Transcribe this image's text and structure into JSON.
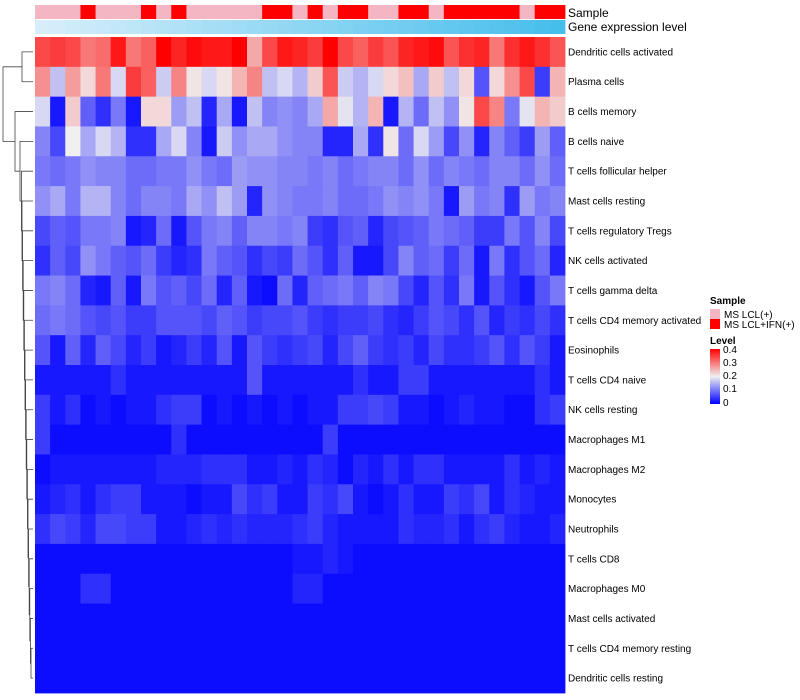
{
  "chart_data": {
    "type": "heatmap",
    "title": "",
    "rows": [
      "Dendritic cells activated",
      "Plasma cells",
      "B cells memory",
      "B cells naive",
      "T cells follicular helper",
      "Mast cells resting",
      "T cells regulatory  Tregs",
      "NK cells activated",
      "T cells gamma delta",
      "T cells CD4 memory activated",
      "Eosinophils",
      "T cells CD4 naive",
      "NK cells resting",
      "Macrophages M1",
      "Macrophages M2",
      "Monocytes",
      "Neutrophils",
      "T cells CD8",
      "Macrophages M0",
      "Mast cells activated",
      "T cells CD4 memory resting",
      "Dendritic cells resting"
    ],
    "values": [
      [
        0.34,
        0.35,
        0.34,
        0.3,
        0.31,
        0.38,
        0.3,
        0.32,
        0.4,
        0.37,
        0.39,
        0.38,
        0.38,
        0.4,
        0.26,
        0.34,
        0.38,
        0.37,
        0.35,
        0.4,
        0.34,
        0.32,
        0.35,
        0.33,
        0.37,
        0.38,
        0.39,
        0.33,
        0.36,
        0.37,
        0.3,
        0.36,
        0.38,
        0.36,
        0.33
      ],
      [
        0.28,
        0.16,
        0.27,
        0.22,
        0.3,
        0.18,
        0.35,
        0.32,
        0.17,
        0.29,
        0.21,
        0.18,
        0.21,
        0.25,
        0.29,
        0.16,
        0.18,
        0.15,
        0.23,
        0.33,
        0.17,
        0.15,
        0.18,
        0.22,
        0.24,
        0.14,
        0.23,
        0.16,
        0.22,
        0.07,
        0.22,
        0.28,
        0.34,
        0.05,
        0.25
      ],
      [
        0.18,
        0.02,
        0.23,
        0.08,
        0.04,
        0.1,
        0.02,
        0.22,
        0.22,
        0.13,
        0.16,
        0.03,
        0.14,
        0.02,
        0.16,
        0.11,
        0.12,
        0.11,
        0.14,
        0.26,
        0.19,
        0.15,
        0.25,
        0.02,
        0.15,
        0.09,
        0.16,
        0.12,
        0.21,
        0.34,
        0.29,
        0.1,
        0.19,
        0.25,
        0.23
      ],
      [
        0.11,
        0.06,
        0.2,
        0.14,
        0.18,
        0.15,
        0.04,
        0.04,
        0.14,
        0.18,
        0.11,
        0.02,
        0.17,
        0.12,
        0.14,
        0.14,
        0.12,
        0.11,
        0.11,
        0.03,
        0.03,
        0.14,
        0.04,
        0.21,
        0.09,
        0.18,
        0.13,
        0.06,
        0.12,
        0.03,
        0.11,
        0.08,
        0.05,
        0.13,
        0.08
      ],
      [
        0.1,
        0.09,
        0.1,
        0.12,
        0.11,
        0.11,
        0.09,
        0.09,
        0.1,
        0.1,
        0.12,
        0.1,
        0.09,
        0.13,
        0.12,
        0.12,
        0.11,
        0.11,
        0.1,
        0.11,
        0.09,
        0.1,
        0.11,
        0.11,
        0.09,
        0.12,
        0.09,
        0.11,
        0.1,
        0.09,
        0.11,
        0.11,
        0.09,
        0.12,
        0.09
      ],
      [
        0.12,
        0.14,
        0.1,
        0.15,
        0.15,
        0.11,
        0.09,
        0.11,
        0.11,
        0.1,
        0.14,
        0.12,
        0.16,
        0.13,
        0.03,
        0.12,
        0.11,
        0.1,
        0.1,
        0.11,
        0.09,
        0.09,
        0.1,
        0.12,
        0.11,
        0.12,
        0.1,
        0.02,
        0.13,
        0.1,
        0.11,
        0.04,
        0.13,
        0.1,
        0.11
      ],
      [
        0.06,
        0.08,
        0.07,
        0.1,
        0.1,
        0.11,
        0.02,
        0.03,
        0.09,
        0.02,
        0.07,
        0.1,
        0.11,
        0.08,
        0.11,
        0.11,
        0.1,
        0.11,
        0.05,
        0.04,
        0.07,
        0.08,
        0.03,
        0.06,
        0.07,
        0.08,
        0.1,
        0.09,
        0.08,
        0.05,
        0.05,
        0.1,
        0.07,
        0.11,
        0.06
      ],
      [
        0.04,
        0.08,
        0.06,
        0.12,
        0.1,
        0.08,
        0.07,
        0.09,
        0.05,
        0.03,
        0.04,
        0.1,
        0.08,
        0.07,
        0.04,
        0.06,
        0.05,
        0.09,
        0.07,
        0.04,
        0.08,
        0.02,
        0.02,
        0.06,
        0.11,
        0.08,
        0.09,
        0.05,
        0.09,
        0.02,
        0.1,
        0.04,
        0.07,
        0.09,
        0.03
      ],
      [
        0.1,
        0.11,
        0.09,
        0.03,
        0.02,
        0.08,
        0.02,
        0.1,
        0.07,
        0.08,
        0.06,
        0.09,
        0.03,
        0.08,
        0.02,
        0.01,
        0.09,
        0.03,
        0.08,
        0.09,
        0.1,
        0.08,
        0.11,
        0.1,
        0.06,
        0.03,
        0.07,
        0.04,
        0.1,
        0.02,
        0.07,
        0.04,
        0.02,
        0.07,
        0.1
      ],
      [
        0.09,
        0.1,
        0.09,
        0.07,
        0.06,
        0.07,
        0.05,
        0.05,
        0.07,
        0.07,
        0.07,
        0.06,
        0.08,
        0.07,
        0.05,
        0.06,
        0.06,
        0.07,
        0.05,
        0.04,
        0.05,
        0.05,
        0.06,
        0.04,
        0.03,
        0.05,
        0.07,
        0.06,
        0.04,
        0.07,
        0.03,
        0.05,
        0.04,
        0.06,
        0.04
      ],
      [
        0.07,
        0.02,
        0.08,
        0.03,
        0.08,
        0.06,
        0.03,
        0.05,
        0.02,
        0.03,
        0.05,
        0.03,
        0.07,
        0.02,
        0.07,
        0.05,
        0.04,
        0.05,
        0.06,
        0.03,
        0.06,
        0.08,
        0.05,
        0.04,
        0.05,
        0.03,
        0.06,
        0.04,
        0.04,
        0.05,
        0.07,
        0.04,
        0.07,
        0.05,
        0.02
      ],
      [
        0.02,
        0.02,
        0.02,
        0.02,
        0.02,
        0.04,
        0.02,
        0.02,
        0.02,
        0.02,
        0.02,
        0.02,
        0.02,
        0.02,
        0.07,
        0.02,
        0.02,
        0.02,
        0.02,
        0.02,
        0.02,
        0.04,
        0.02,
        0.02,
        0.05,
        0.05,
        0.02,
        0.02,
        0.02,
        0.02,
        0.02,
        0.02,
        0.02,
        0.04,
        0.02
      ],
      [
        0.05,
        0.02,
        0.04,
        0.01,
        0.02,
        0.01,
        0.02,
        0.02,
        0.04,
        0.05,
        0.05,
        0.01,
        0.02,
        0.01,
        0.02,
        0.01,
        0.02,
        0.01,
        0.02,
        0.02,
        0.05,
        0.05,
        0.06,
        0.05,
        0.02,
        0.02,
        0.01,
        0.02,
        0.03,
        0.02,
        0.02,
        0.01,
        0.01,
        0.04,
        0.05
      ],
      [
        0.05,
        0.01,
        0.01,
        0.01,
        0.01,
        0.01,
        0.01,
        0.01,
        0.01,
        0.04,
        0.01,
        0.01,
        0.01,
        0.01,
        0.01,
        0.01,
        0.01,
        0.01,
        0.01,
        0.05,
        0.01,
        0.01,
        0.01,
        0.01,
        0.01,
        0.01,
        0.01,
        0.01,
        0.01,
        0.01,
        0.01,
        0.01,
        0.01,
        0.01,
        0.01
      ],
      [
        0.01,
        0.02,
        0.02,
        0.02,
        0.02,
        0.02,
        0.02,
        0.02,
        0.03,
        0.03,
        0.03,
        0.04,
        0.04,
        0.04,
        0.02,
        0.02,
        0.03,
        0.02,
        0.04,
        0.03,
        0.01,
        0.03,
        0.02,
        0.04,
        0.02,
        0.04,
        0.04,
        0.02,
        0.02,
        0.02,
        0.02,
        0.04,
        0.02,
        0.03,
        0.02
      ],
      [
        0.02,
        0.03,
        0.04,
        0.02,
        0.04,
        0.05,
        0.05,
        0.02,
        0.02,
        0.02,
        0.01,
        0.02,
        0.02,
        0.06,
        0.04,
        0.05,
        0.02,
        0.02,
        0.05,
        0.04,
        0.06,
        0.02,
        0.01,
        0.02,
        0.04,
        0.02,
        0.02,
        0.05,
        0.04,
        0.06,
        0.02,
        0.04,
        0.03,
        0.02,
        0.02
      ],
      [
        0.04,
        0.06,
        0.05,
        0.03,
        0.06,
        0.06,
        0.05,
        0.05,
        0.02,
        0.02,
        0.03,
        0.04,
        0.03,
        0.04,
        0.03,
        0.03,
        0.03,
        0.04,
        0.05,
        0.03,
        0.02,
        0.02,
        0.02,
        0.02,
        0.04,
        0.03,
        0.03,
        0.04,
        0.02,
        0.04,
        0.05,
        0.03,
        0.02,
        0.02,
        0.03
      ],
      [
        0.01,
        0.01,
        0.01,
        0.01,
        0.01,
        0.01,
        0.01,
        0.01,
        0.01,
        0.01,
        0.01,
        0.01,
        0.01,
        0.01,
        0.01,
        0.01,
        0.01,
        0.02,
        0.02,
        0.03,
        0.02,
        0.01,
        0.01,
        0.01,
        0.01,
        0.01,
        0.01,
        0.01,
        0.01,
        0.01,
        0.01,
        0.01,
        0.01,
        0.01,
        0.01
      ],
      [
        0.01,
        0.01,
        0.01,
        0.04,
        0.04,
        0.01,
        0.01,
        0.01,
        0.01,
        0.01,
        0.01,
        0.01,
        0.01,
        0.01,
        0.01,
        0.01,
        0.01,
        0.03,
        0.03,
        0.01,
        0.01,
        0.01,
        0.01,
        0.01,
        0.01,
        0.01,
        0.01,
        0.01,
        0.01,
        0.01,
        0.01,
        0.01,
        0.01,
        0.01,
        0.01
      ],
      [
        0.01,
        0.01,
        0.01,
        0.01,
        0.01,
        0.01,
        0.01,
        0.01,
        0.01,
        0.01,
        0.01,
        0.01,
        0.01,
        0.01,
        0.01,
        0.01,
        0.01,
        0.01,
        0.01,
        0.01,
        0.01,
        0.01,
        0.01,
        0.01,
        0.01,
        0.01,
        0.01,
        0.01,
        0.01,
        0.01,
        0.01,
        0.01,
        0.01,
        0.01,
        0.01
      ],
      [
        0.01,
        0.01,
        0.01,
        0.01,
        0.01,
        0.01,
        0.01,
        0.01,
        0.01,
        0.01,
        0.01,
        0.01,
        0.01,
        0.01,
        0.01,
        0.01,
        0.01,
        0.01,
        0.01,
        0.01,
        0.01,
        0.01,
        0.01,
        0.01,
        0.01,
        0.01,
        0.01,
        0.01,
        0.01,
        0.01,
        0.01,
        0.01,
        0.01,
        0.01,
        0.01
      ],
      [
        0.01,
        0.01,
        0.01,
        0.01,
        0.01,
        0.01,
        0.01,
        0.01,
        0.01,
        0.01,
        0.01,
        0.01,
        0.01,
        0.01,
        0.01,
        0.01,
        0.01,
        0.01,
        0.01,
        0.01,
        0.01,
        0.01,
        0.01,
        0.01,
        0.01,
        0.01,
        0.01,
        0.01,
        0.01,
        0.01,
        0.01,
        0.01,
        0.01,
        0.01,
        0.01
      ]
    ],
    "samples": [
      0,
      0,
      0,
      1,
      0,
      0,
      0,
      1,
      0,
      1,
      0,
      0,
      0,
      0,
      0,
      1,
      1,
      0,
      1,
      0,
      1,
      1,
      0,
      0,
      1,
      1,
      0,
      1,
      1,
      1,
      1,
      1,
      0,
      1,
      1
    ],
    "gene_expression": "gradient light blue to blue (low to high) across columns",
    "annotation_labels": {
      "sample": "Sample",
      "gene": "Gene expression level"
    },
    "legend_sample": {
      "title": "Sample",
      "entries": [
        {
          "label": "MS LCL(+)",
          "color": "#f5b6c3"
        },
        {
          "label": "MS LCL+IFN(+)",
          "color": "#ff0000"
        }
      ]
    },
    "legend_level": {
      "title": "Level",
      "ticks": [
        "0.4",
        "0.3",
        "0.2",
        "0.1",
        "0"
      ],
      "range": [
        0,
        0.4
      ]
    },
    "colors": {
      "low": "#0000ff",
      "mid": "#f0f0f0",
      "high": "#ff0000"
    }
  }
}
